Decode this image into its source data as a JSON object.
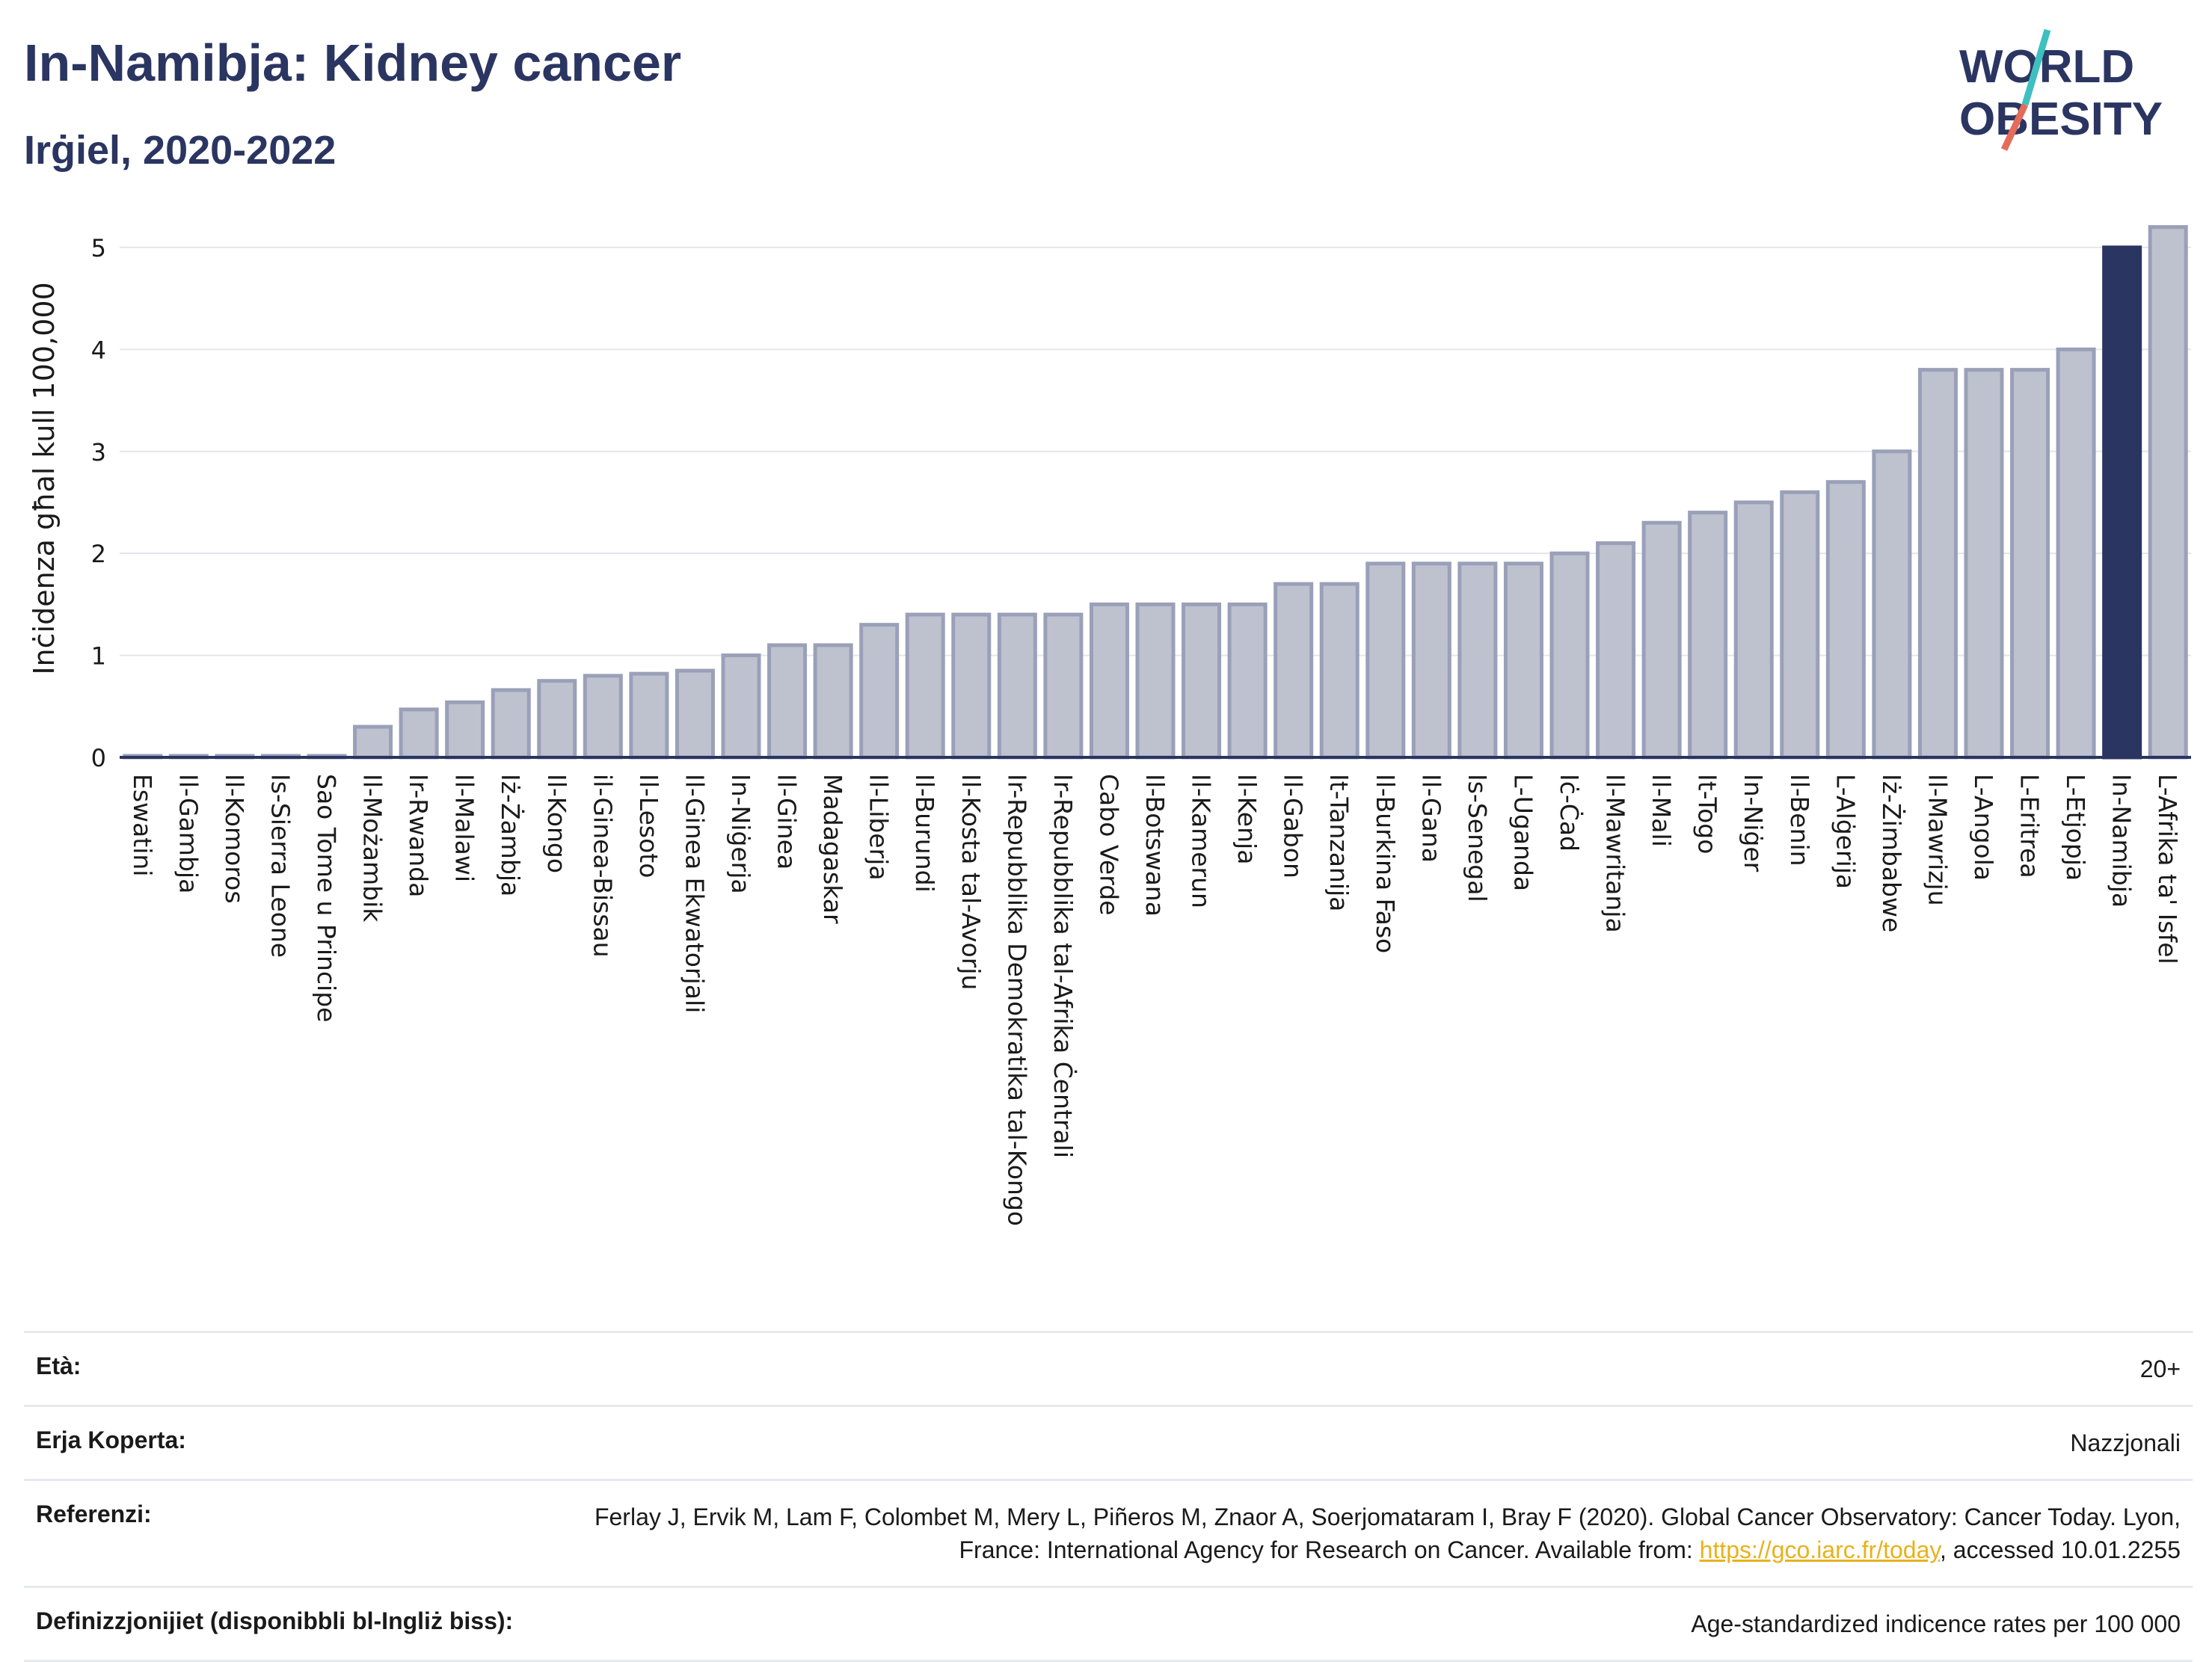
{
  "header": {
    "title": "In-Namibja: Kidney cancer",
    "subtitle": "Irġiel, 2020-2022"
  },
  "logo": {
    "line1": "WORLD",
    "line2": "OBESITY"
  },
  "chart_data": {
    "type": "bar",
    "ylabel": "Inċidenza għal kull 100,000",
    "xlabel": "",
    "ylim": [
      0,
      5.3
    ],
    "yticks": [
      0,
      1,
      2,
      3,
      4,
      5
    ],
    "grid": true,
    "highlight": "In-Namibja",
    "colors": {
      "bar": "#bec2cf",
      "bar_edge": "#9aa0b8",
      "highlight": "#2b3561",
      "grid": "#e3e6ec",
      "axis": "#2b3561"
    },
    "categories": [
      "Eswatini",
      "Il-Gambja",
      "Il-Komoros",
      "Is-Sierra Leone",
      "Sao Tome u Principe",
      "Il-Możambik",
      "Ir-Rwanda",
      "Il-Malawi",
      "Iż-Żambja",
      "Il-Kongo",
      "il-Ginea-Bissau",
      "Il-Lesoto",
      "Il-Ginea Ekwatorjali",
      "In-Niġerja",
      "Il-Ginea",
      "Madagaskar",
      "Il-Liberja",
      "Il-Burundi",
      "Il-Kosta tal-Avorju",
      "Ir-Repubblika Demokratika tal-Kongo",
      "Ir-Repubblika tal-Afrika Ċentrali",
      "Cabo Verde",
      "Il-Botswana",
      "Il-Kamerun",
      "Il-Kenja",
      "Il-Gabon",
      "It-Tanzanija",
      "Il-Burkina Faso",
      "Il-Gana",
      "Is-Senegal",
      "L-Uganda",
      "Iċ-Ċad",
      "Il-Mawritanja",
      "Il-Mali",
      "It-Togo",
      "In-Niġer",
      "Il-Benin",
      "L-Alġerija",
      "Iż-Żimbabwe",
      "Il-Mawrizju",
      "L-Angola",
      "L-Eritrea",
      "L-Etjopja",
      "In-Namibja",
      "L-Afrika ta' Isfel"
    ],
    "values": [
      0.01,
      0.01,
      0.01,
      0.01,
      0.01,
      0.3,
      0.47,
      0.54,
      0.66,
      0.75,
      0.8,
      0.82,
      0.85,
      1.0,
      1.1,
      1.1,
      1.3,
      1.4,
      1.4,
      1.4,
      1.4,
      1.5,
      1.5,
      1.5,
      1.5,
      1.7,
      1.7,
      1.9,
      1.9,
      1.9,
      1.9,
      2.0,
      2.1,
      2.3,
      2.4,
      2.5,
      2.6,
      2.7,
      3.0,
      3.8,
      3.8,
      3.8,
      4.0,
      5.0,
      5.2
    ]
  },
  "footer": {
    "age_label": "Età:",
    "age_value": "20+",
    "area_label": "Erja Koperta:",
    "area_value": "Nazzjonali",
    "ref_label": "Referenzi:",
    "ref_text1": "Ferlay J, Ervik M, Lam F, Colombet M, Mery L, Piñeros M, Znaor A, Soerjomataram I, Bray F (2020). Global Cancer Observatory: Cancer Today. Lyon, France: International Agency for Research on Cancer. Available from: ",
    "ref_link": "https://gco.iarc.fr/today",
    "ref_text2": ", accessed 10.01.2255",
    "def_label": "Definizzjonijiet (disponibbli bl-Ingliż biss):",
    "def_value": "Age-standardized indicence rates per 100 000"
  }
}
